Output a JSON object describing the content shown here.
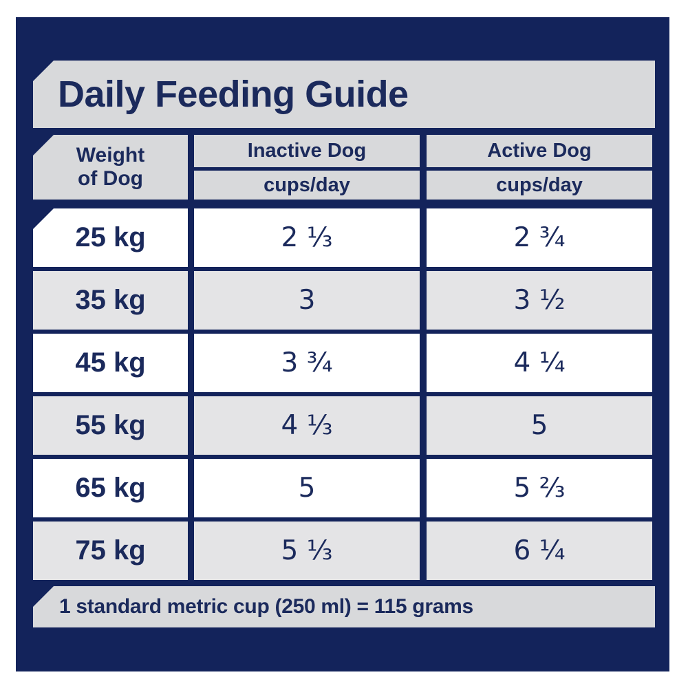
{
  "title": "Daily Feeding Guide",
  "footnote": "1 standard metric cup (250 ml) = 115 grams",
  "columns": {
    "weight": {
      "line1": "Weight",
      "line2": "of Dog"
    },
    "inactive": {
      "label": "Inactive Dog",
      "unit": "cups/day"
    },
    "active": {
      "label": "Active Dog",
      "unit": "cups/day"
    }
  },
  "rows": [
    {
      "weight": "25 kg",
      "inactive": "2 ⅓",
      "active": "2 ¾"
    },
    {
      "weight": "35 kg",
      "inactive": "3",
      "active": "3 ½"
    },
    {
      "weight": "45 kg",
      "inactive": "3 ¾",
      "active": "4 ¼"
    },
    {
      "weight": "55 kg",
      "inactive": "4 ⅓",
      "active": "5"
    },
    {
      "weight": "65 kg",
      "inactive": "5",
      "active": "5 ⅔"
    },
    {
      "weight": "75 kg",
      "inactive": "5 ⅓",
      "active": "6 ¼"
    }
  ],
  "colors": {
    "panel_navy": "#13235b",
    "band_gray": "#d8d9db",
    "row_white": "#ffffff",
    "row_gray": "#e4e4e6",
    "text_navy": "#1b2a5c"
  },
  "chart_data": {
    "type": "table",
    "title": "Daily Feeding Guide",
    "columns": [
      "Weight of Dog",
      "Inactive Dog (cups/day)",
      "Active Dog (cups/day)"
    ],
    "rows": [
      [
        "25 kg",
        "2 ⅓",
        "2 ¾"
      ],
      [
        "35 kg",
        "3",
        "3 ½"
      ],
      [
        "45 kg",
        "3 ¾",
        "4 ¼"
      ],
      [
        "55 kg",
        "4 ⅓",
        "5"
      ],
      [
        "65 kg",
        "5",
        "5 ⅔"
      ],
      [
        "75 kg",
        "5 ⅓",
        "6 ¼"
      ]
    ],
    "weights_kg": [
      25,
      35,
      45,
      55,
      65,
      75
    ],
    "inactive_cups_per_day": [
      2.33,
      3,
      3.75,
      4.33,
      5,
      5.33
    ],
    "active_cups_per_day": [
      2.75,
      3.5,
      4.25,
      5,
      5.67,
      6.25
    ],
    "footnote": "1 standard metric cup (250 ml) = 115 grams"
  }
}
